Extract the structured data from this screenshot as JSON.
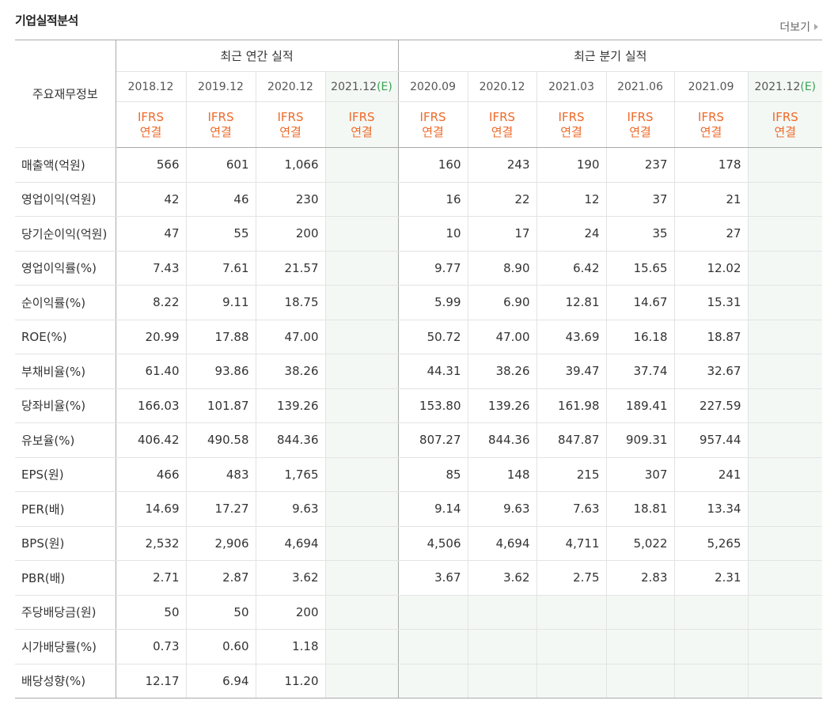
{
  "section_title": "기업실적분석",
  "more_label": "더보기",
  "header": {
    "row_label": "주요재무정보",
    "annual_group": "최근 연간 실적",
    "quarter_group": "최근 분기 실적",
    "periods": [
      {
        "label": "2018.12",
        "est": ""
      },
      {
        "label": "2019.12",
        "est": ""
      },
      {
        "label": "2020.12",
        "est": ""
      },
      {
        "label": "2021.12",
        "est": "(E)"
      },
      {
        "label": "2020.09",
        "est": ""
      },
      {
        "label": "2020.12",
        "est": ""
      },
      {
        "label": "2021.03",
        "est": ""
      },
      {
        "label": "2021.06",
        "est": ""
      },
      {
        "label": "2021.09",
        "est": ""
      },
      {
        "label": "2021.12",
        "est": "(E)"
      }
    ],
    "ifrs_line1": "IFRS",
    "ifrs_line2": "연결"
  },
  "rows": [
    {
      "label": "매출액(억원)",
      "values": [
        "566",
        "601",
        "1,066",
        "",
        "160",
        "243",
        "190",
        "237",
        "178",
        ""
      ]
    },
    {
      "label": "영업이익(억원)",
      "values": [
        "42",
        "46",
        "230",
        "",
        "16",
        "22",
        "12",
        "37",
        "21",
        ""
      ]
    },
    {
      "label": "당기순이익(억원)",
      "values": [
        "47",
        "55",
        "200",
        "",
        "10",
        "17",
        "24",
        "35",
        "27",
        ""
      ]
    },
    {
      "label": "영업이익률(%)",
      "values": [
        "7.43",
        "7.61",
        "21.57",
        "",
        "9.77",
        "8.90",
        "6.42",
        "15.65",
        "12.02",
        ""
      ]
    },
    {
      "label": "순이익률(%)",
      "values": [
        "8.22",
        "9.11",
        "18.75",
        "",
        "5.99",
        "6.90",
        "12.81",
        "14.67",
        "15.31",
        ""
      ]
    },
    {
      "label": "ROE(%)",
      "values": [
        "20.99",
        "17.88",
        "47.00",
        "",
        "50.72",
        "47.00",
        "43.69",
        "16.18",
        "18.87",
        ""
      ]
    },
    {
      "label": "부채비율(%)",
      "values": [
        "61.40",
        "93.86",
        "38.26",
        "",
        "44.31",
        "38.26",
        "39.47",
        "37.74",
        "32.67",
        ""
      ]
    },
    {
      "label": "당좌비율(%)",
      "values": [
        "166.03",
        "101.87",
        "139.26",
        "",
        "153.80",
        "139.26",
        "161.98",
        "189.41",
        "227.59",
        ""
      ]
    },
    {
      "label": "유보율(%)",
      "values": [
        "406.42",
        "490.58",
        "844.36",
        "",
        "807.27",
        "844.36",
        "847.87",
        "909.31",
        "957.44",
        ""
      ]
    },
    {
      "label": "EPS(원)",
      "values": [
        "466",
        "483",
        "1,765",
        "",
        "85",
        "148",
        "215",
        "307",
        "241",
        ""
      ]
    },
    {
      "label": "PER(배)",
      "values": [
        "14.69",
        "17.27",
        "9.63",
        "",
        "9.14",
        "9.63",
        "7.63",
        "18.81",
        "13.34",
        ""
      ]
    },
    {
      "label": "BPS(원)",
      "values": [
        "2,532",
        "2,906",
        "4,694",
        "",
        "4,506",
        "4,694",
        "4,711",
        "5,022",
        "5,265",
        ""
      ]
    },
    {
      "label": "PBR(배)",
      "values": [
        "2.71",
        "2.87",
        "3.62",
        "",
        "3.67",
        "3.62",
        "2.75",
        "2.83",
        "2.31",
        ""
      ]
    },
    {
      "label": "주당배당금(원)",
      "values": [
        "50",
        "50",
        "200",
        "",
        "",
        "",
        "",
        "",
        "",
        ""
      ]
    },
    {
      "label": "시가배당률(%)",
      "values": [
        "0.73",
        "0.60",
        "1.18",
        "",
        "",
        "",
        "",
        "",
        "",
        ""
      ]
    },
    {
      "label": "배당성향(%)",
      "values": [
        "12.17",
        "6.94",
        "11.20",
        "",
        "",
        "",
        "",
        "",
        "",
        ""
      ]
    }
  ]
}
